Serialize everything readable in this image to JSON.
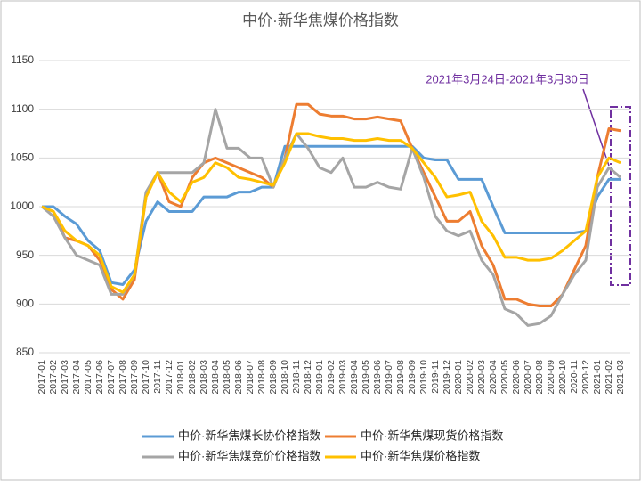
{
  "chart_data": {
    "type": "line",
    "title": "中价·新华焦煤价格指数",
    "annotation": "2021年3月24日-2021年3月30日",
    "categories": [
      "2017-01",
      "2017-02",
      "2017-03",
      "2017-04",
      "2017-05",
      "2017-06",
      "2017-07",
      "2017-08",
      "2017-09",
      "2017-10",
      "2017-11",
      "2017-12",
      "2018-01",
      "2018-02",
      "2018-03",
      "2018-04",
      "2018-05",
      "2018-06",
      "2018-07",
      "2018-08",
      "2018-09",
      "2018-10",
      "2018-11",
      "2018-12",
      "2019-01",
      "2019-02",
      "2019-03",
      "2019-04",
      "2019-05",
      "2019-06",
      "2019-07",
      "2019-08",
      "2019-09",
      "2019-10",
      "2019-11",
      "2019-12",
      "2020-01",
      "2020-02",
      "2020-03",
      "2020-04",
      "2020-05",
      "2020-06",
      "2020-07",
      "2020-08",
      "2020-09",
      "2020-10",
      "2020-11",
      "2020-12",
      "2021-01",
      "2021-02",
      "2021-03"
    ],
    "series": [
      {
        "name": "中价·新华焦煤长协价格指数",
        "color": "#5b9bd5",
        "values": [
          1000,
          1000,
          990,
          982,
          965,
          955,
          922,
          920,
          935,
          985,
          1005,
          995,
          995,
          995,
          1010,
          1010,
          1010,
          1015,
          1015,
          1020,
          1020,
          1062,
          1062,
          1062,
          1062,
          1062,
          1062,
          1062,
          1062,
          1062,
          1062,
          1062,
          1062,
          1050,
          1048,
          1048,
          1028,
          1028,
          1028,
          1000,
          973,
          973,
          973,
          973,
          973,
          973,
          973,
          975,
          1010,
          1028,
          1028
        ]
      },
      {
        "name": "中价·新华焦煤现货价格指数",
        "color": "#ed7d31",
        "values": [
          1000,
          995,
          968,
          965,
          960,
          945,
          915,
          905,
          925,
          1010,
          1035,
          1005,
          1000,
          1030,
          1045,
          1050,
          1045,
          1040,
          1035,
          1030,
          1020,
          1050,
          1105,
          1105,
          1095,
          1093,
          1093,
          1090,
          1090,
          1092,
          1090,
          1088,
          1060,
          1035,
          1010,
          985,
          985,
          995,
          960,
          940,
          905,
          905,
          900,
          898,
          898,
          910,
          935,
          960,
          1030,
          1080,
          1078
        ]
      },
      {
        "name": "中价·新华焦煤竞价价格指数",
        "color": "#a5a5a5",
        "values": [
          1000,
          990,
          968,
          950,
          945,
          940,
          910,
          910,
          930,
          1015,
          1035,
          1035,
          1035,
          1035,
          1045,
          1100,
          1060,
          1060,
          1050,
          1050,
          1020,
          1050,
          1075,
          1060,
          1040,
          1035,
          1050,
          1020,
          1020,
          1025,
          1020,
          1018,
          1060,
          1030,
          990,
          975,
          970,
          975,
          945,
          930,
          895,
          890,
          878,
          880,
          888,
          910,
          930,
          945,
          1020,
          1040,
          1030
        ]
      },
      {
        "name": "中价·新华焦煤价格指数",
        "color": "#ffc000",
        "values": [
          1000,
          995,
          975,
          965,
          960,
          950,
          918,
          912,
          930,
          1010,
          1035,
          1015,
          1005,
          1025,
          1030,
          1045,
          1040,
          1030,
          1028,
          1025,
          1022,
          1045,
          1075,
          1075,
          1072,
          1070,
          1070,
          1068,
          1068,
          1070,
          1068,
          1068,
          1060,
          1045,
          1030,
          1010,
          1012,
          1015,
          985,
          970,
          948,
          948,
          945,
          945,
          947,
          955,
          965,
          975,
          1030,
          1050,
          1045
        ]
      }
    ],
    "ylim": [
      850,
      1150
    ],
    "yticks": [
      850,
      900,
      950,
      1000,
      1050,
      1100,
      1150
    ],
    "grid": true
  }
}
